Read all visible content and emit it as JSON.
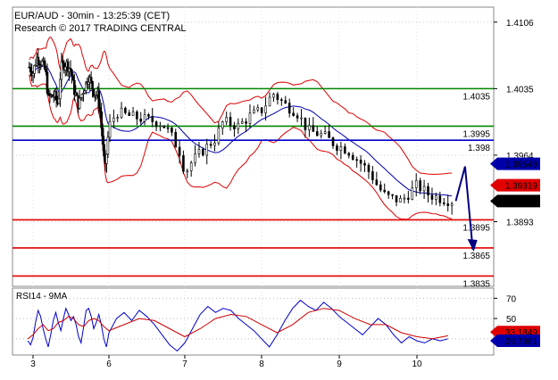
{
  "header": {
    "line1": "EUR/AUD - 30min - 13:25:39 (CET)",
    "line2": "Research © 2017 TRADING CENTRAL"
  },
  "colors": {
    "support": "#e00000",
    "resistance": "#008800",
    "pivot": "#0000cc",
    "bollinger": "#dd0000",
    "moving_average": "#0000aa",
    "rsi_line": "#0000cc",
    "rsi_ma": "#cc0000",
    "arrow": "#000080"
  },
  "chart_data": [
    {
      "type": "candlestick",
      "title": "EUR/AUD - 30min - 13:25:39 (CET)",
      "subtitle": "Research © 2017 TRADING CENTRAL",
      "x_ticks": [
        "3",
        "6",
        "7",
        "8",
        "9",
        "10"
      ],
      "y_ticks": [
        1.4106,
        1.4035,
        1.3964,
        1.3893
      ],
      "ylim": [
        1.3824,
        1.4122
      ],
      "grid": true,
      "levels": [
        {
          "value": 1.4035,
          "label": "1.4035",
          "kind": "resistance"
        },
        {
          "value": 1.3995,
          "label": "1.3995",
          "kind": "resistance"
        },
        {
          "value": 1.398,
          "label": "1.398",
          "kind": "pivot"
        },
        {
          "value": 1.3895,
          "label": "1.3895",
          "kind": "support"
        },
        {
          "value": 1.3865,
          "label": "1.3865",
          "kind": "support"
        },
        {
          "value": 1.3835,
          "label": "1.3835",
          "kind": "support"
        }
      ],
      "price_tags": [
        {
          "value": 1.39548,
          "label": "1.39548",
          "style": "blue"
        },
        {
          "value": 1.39319,
          "label": "1.39319",
          "style": "red"
        },
        {
          "value": 1.39151,
          "label": "1.39151",
          "style": "black"
        }
      ],
      "scenario_path": [
        {
          "x": 10.5,
          "y": 1.3915
        },
        {
          "x": 10.62,
          "y": 1.3952
        },
        {
          "x": 10.72,
          "y": 1.3863
        }
      ],
      "close_path": [
        {
          "x": 2.85,
          "y": 1.4058
        },
        {
          "x": 3.0,
          "y": 1.4052
        },
        {
          "x": 3.15,
          "y": 1.4068
        },
        {
          "x": 3.35,
          "y": 1.4063
        },
        {
          "x": 3.5,
          "y": 1.4053
        },
        {
          "x": 3.6,
          "y": 1.4025
        },
        {
          "x": 3.85,
          "y": 1.4028
        },
        {
          "x": 4.0,
          "y": 1.4018
        },
        {
          "x": 4.1,
          "y": 1.4058
        },
        {
          "x": 4.3,
          "y": 1.4062
        },
        {
          "x": 4.5,
          "y": 1.4055
        },
        {
          "x": 4.6,
          "y": 1.4036
        },
        {
          "x": 4.8,
          "y": 1.4018
        },
        {
          "x": 5.0,
          "y": 1.4034
        },
        {
          "x": 5.2,
          "y": 1.4048
        },
        {
          "x": 5.4,
          "y": 1.4032
        },
        {
          "x": 5.55,
          "y": 1.4028
        },
        {
          "x": 5.65,
          "y": 1.4012
        },
        {
          "x": 5.85,
          "y": 1.3946
        },
        {
          "x": 6.0,
          "y": 1.3995
        },
        {
          "x": 6.1,
          "y": 1.401
        },
        {
          "x": 6.3,
          "y": 1.4005
        },
        {
          "x": 6.5,
          "y": 1.4002
        },
        {
          "x": 6.7,
          "y": 1.3998
        },
        {
          "x": 6.8,
          "y": 1.3988
        },
        {
          "x": 6.95,
          "y": 1.3965
        },
        {
          "x": 7.0,
          "y": 1.3945
        },
        {
          "x": 7.1,
          "y": 1.3958
        },
        {
          "x": 7.25,
          "y": 1.397
        },
        {
          "x": 7.4,
          "y": 1.3982
        },
        {
          "x": 7.5,
          "y": 1.4
        },
        {
          "x": 7.7,
          "y": 1.3995
        },
        {
          "x": 7.85,
          "y": 1.4006
        },
        {
          "x": 8.0,
          "y": 1.4012
        },
        {
          "x": 8.15,
          "y": 1.403
        },
        {
          "x": 8.3,
          "y": 1.4018
        },
        {
          "x": 8.45,
          "y": 1.401
        },
        {
          "x": 8.6,
          "y": 1.399
        },
        {
          "x": 8.8,
          "y": 1.3985
        },
        {
          "x": 8.95,
          "y": 1.3975
        },
        {
          "x": 9.1,
          "y": 1.397
        },
        {
          "x": 9.25,
          "y": 1.3958
        },
        {
          "x": 9.4,
          "y": 1.3945
        },
        {
          "x": 9.5,
          "y": 1.393
        },
        {
          "x": 9.6,
          "y": 1.392
        },
        {
          "x": 9.8,
          "y": 1.3915
        },
        {
          "x": 10.0,
          "y": 1.3932
        },
        {
          "x": 10.15,
          "y": 1.3922
        },
        {
          "x": 10.3,
          "y": 1.3918
        },
        {
          "x": 10.45,
          "y": 1.3915
        }
      ]
    },
    {
      "type": "line",
      "title": "RSI14 - 9MA",
      "x_ticks": [
        "3",
        "6",
        "7",
        "8",
        "9",
        "10"
      ],
      "y_ticks": [
        70,
        50
      ],
      "ylim": [
        14,
        80
      ],
      "price_tags": [
        {
          "value": 33.1849,
          "label": "33.1849",
          "style": "red"
        },
        {
          "value": 29.7961,
          "label": "29.7961",
          "style": "blue"
        }
      ],
      "series": [
        {
          "key": "rsi",
          "points": [
            [
              2.8,
              28
            ],
            [
              2.9,
              24
            ],
            [
              3.0,
              31
            ],
            [
              3.1,
              46
            ],
            [
              3.2,
              58
            ],
            [
              3.3,
              52
            ],
            [
              3.4,
              40
            ],
            [
              3.5,
              30
            ],
            [
              3.6,
              22
            ],
            [
              3.7,
              34
            ],
            [
              3.8,
              48
            ],
            [
              3.9,
              56
            ],
            [
              4.0,
              46
            ],
            [
              4.1,
              38
            ],
            [
              4.2,
              50
            ],
            [
              4.3,
              60
            ],
            [
              4.4,
              54
            ],
            [
              4.5,
              48
            ],
            [
              4.6,
              52
            ],
            [
              4.7,
              44
            ],
            [
              4.8,
              32
            ],
            [
              4.9,
              26
            ],
            [
              5.0,
              42
            ],
            [
              5.1,
              58
            ],
            [
              5.2,
              60
            ],
            [
              5.3,
              52
            ],
            [
              5.4,
              40
            ],
            [
              5.5,
              46
            ],
            [
              5.6,
              54
            ],
            [
              5.7,
              44
            ],
            [
              5.8,
              30
            ],
            [
              5.9,
              22
            ],
            [
              6.0,
              36
            ],
            [
              6.1,
              50
            ],
            [
              6.2,
              56
            ],
            [
              6.3,
              48
            ],
            [
              6.4,
              58
            ],
            [
              6.5,
              52
            ],
            [
              6.6,
              44
            ],
            [
              6.7,
              34
            ],
            [
              6.8,
              24
            ],
            [
              6.9,
              18
            ],
            [
              7.0,
              26
            ],
            [
              7.1,
              40
            ],
            [
              7.2,
              54
            ],
            [
              7.3,
              62
            ],
            [
              7.4,
              56
            ],
            [
              7.5,
              60
            ],
            [
              7.6,
              58
            ],
            [
              7.7,
              50
            ],
            [
              7.8,
              44
            ],
            [
              7.9,
              38
            ],
            [
              8.0,
              30
            ],
            [
              8.1,
              22
            ],
            [
              8.2,
              34
            ],
            [
              8.3,
              48
            ],
            [
              8.4,
              60
            ],
            [
              8.5,
              68
            ],
            [
              8.6,
              62
            ],
            [
              8.7,
              58
            ],
            [
              8.8,
              66
            ],
            [
              8.9,
              60
            ],
            [
              9.0,
              52
            ],
            [
              9.1,
              46
            ],
            [
              9.2,
              40
            ],
            [
              9.3,
              34
            ],
            [
              9.4,
              42
            ],
            [
              9.5,
              50
            ],
            [
              9.6,
              44
            ],
            [
              9.7,
              34
            ],
            [
              9.8,
              26
            ],
            [
              9.9,
              32
            ],
            [
              10.0,
              28
            ],
            [
              10.1,
              26
            ],
            [
              10.2,
              30
            ],
            [
              10.3,
              28
            ],
            [
              10.4,
              30
            ]
          ]
        },
        {
          "key": "ma",
          "points": [
            [
              2.8,
              30
            ],
            [
              3.0,
              34
            ],
            [
              3.2,
              40
            ],
            [
              3.4,
              44
            ],
            [
              3.6,
              38
            ],
            [
              3.8,
              40
            ],
            [
              4.0,
              46
            ],
            [
              4.2,
              48
            ],
            [
              4.4,
              52
            ],
            [
              4.6,
              50
            ],
            [
              4.8,
              44
            ],
            [
              5.0,
              42
            ],
            [
              5.2,
              48
            ],
            [
              5.4,
              50
            ],
            [
              5.6,
              48
            ],
            [
              5.8,
              42
            ],
            [
              6.0,
              38
            ],
            [
              6.2,
              44
            ],
            [
              6.4,
              50
            ],
            [
              6.6,
              48
            ],
            [
              6.8,
              40
            ],
            [
              7.0,
              32
            ],
            [
              7.2,
              40
            ],
            [
              7.4,
              50
            ],
            [
              7.6,
              54
            ],
            [
              7.8,
              52
            ],
            [
              8.0,
              44
            ],
            [
              8.2,
              36
            ],
            [
              8.4,
              44
            ],
            [
              8.6,
              56
            ],
            [
              8.8,
              60
            ],
            [
              9.0,
              58
            ],
            [
              9.2,
              50
            ],
            [
              9.4,
              44
            ],
            [
              9.6,
              44
            ],
            [
              9.8,
              36
            ],
            [
              10.0,
              32
            ],
            [
              10.2,
              30
            ],
            [
              10.4,
              33
            ]
          ]
        }
      ]
    }
  ]
}
